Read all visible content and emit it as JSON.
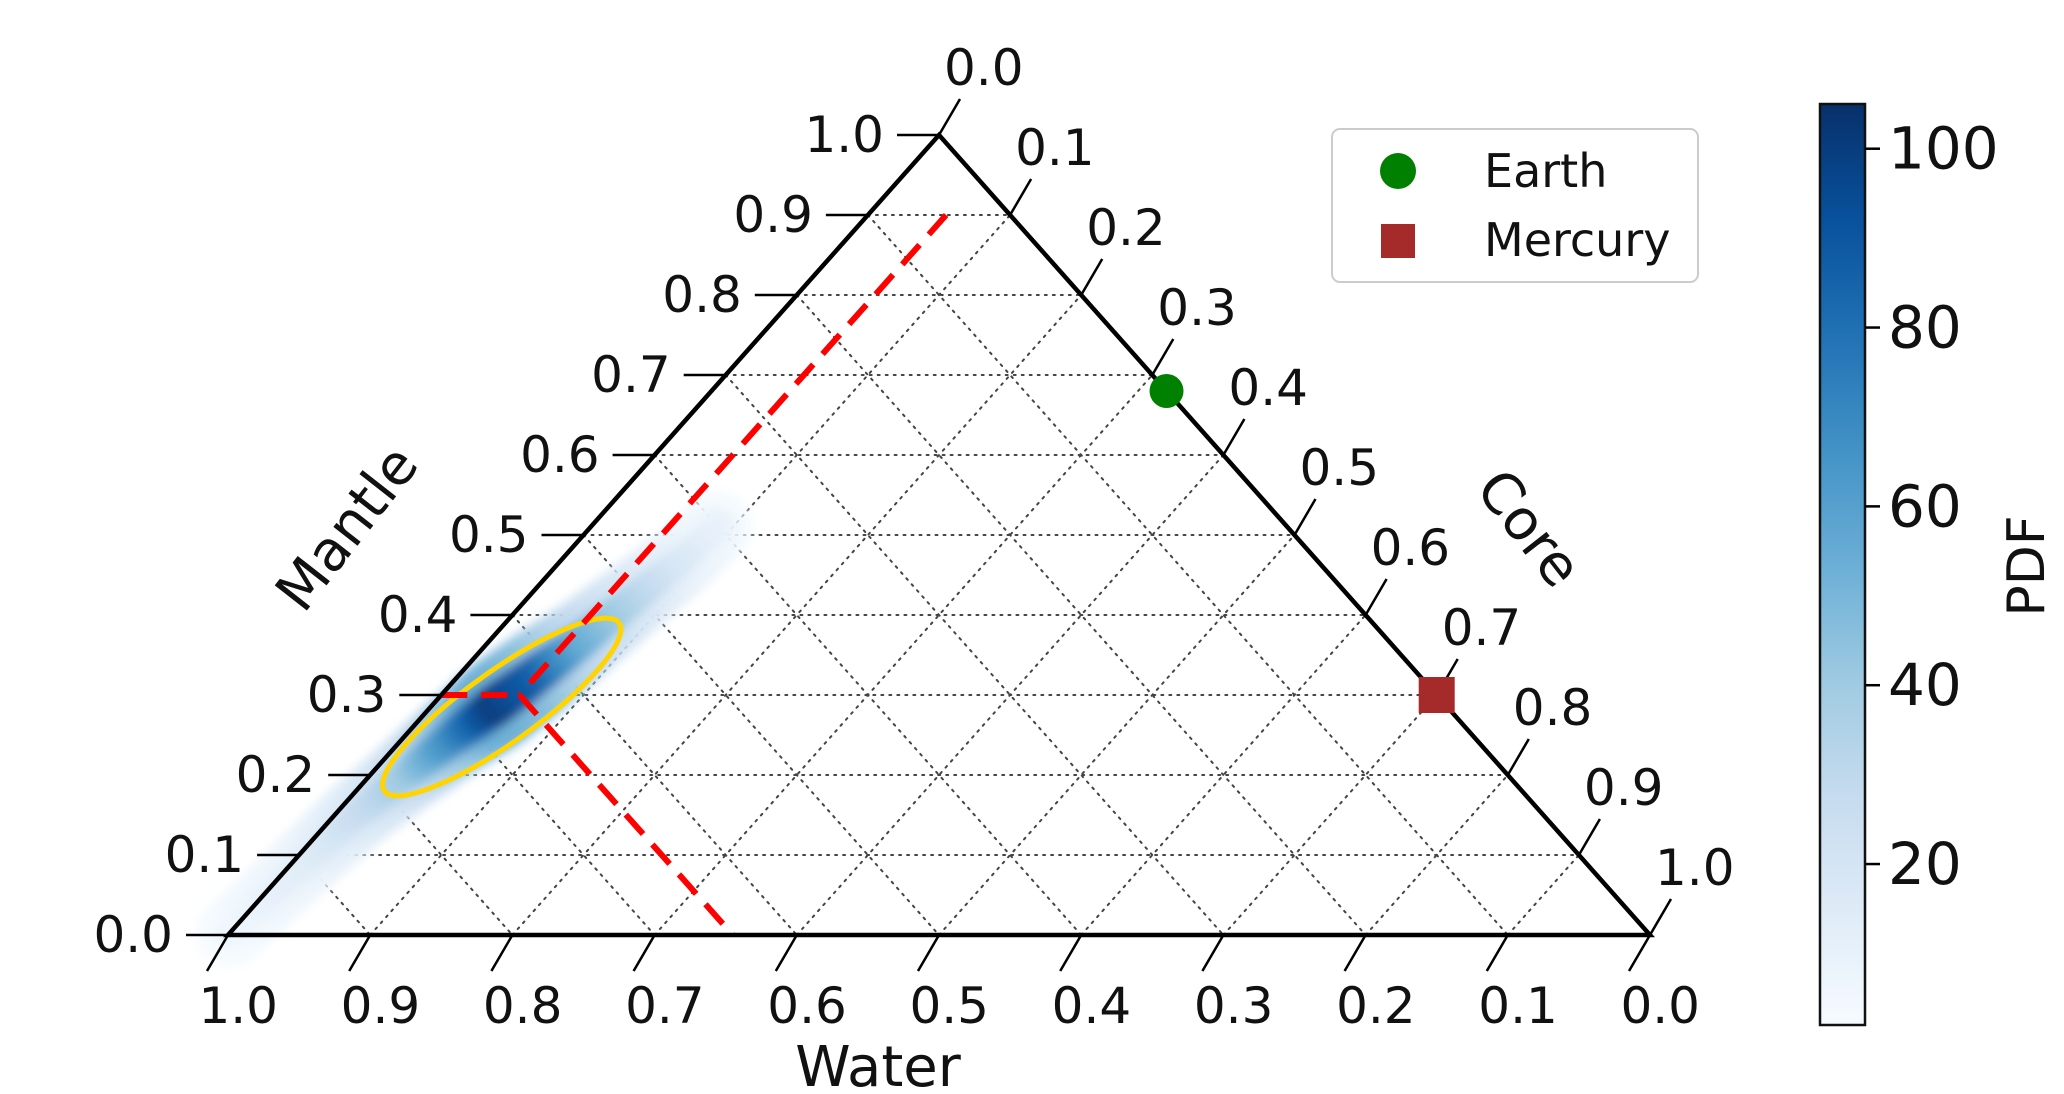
{
  "chart_data": {
    "type": "scatter",
    "subtype": "ternary-density",
    "axes": {
      "left": {
        "label": "Mantle",
        "ticks": [
          "0.0",
          "0.1",
          "0.2",
          "0.3",
          "0.4",
          "0.5",
          "0.6",
          "0.7",
          "0.8",
          "0.9",
          "1.0"
        ]
      },
      "right": {
        "label": "Core",
        "ticks": [
          "0.0",
          "0.1",
          "0.2",
          "0.3",
          "0.4",
          "0.5",
          "0.6",
          "0.7",
          "0.8",
          "0.9",
          "1.0"
        ]
      },
      "bottom": {
        "label": "Water",
        "ticks": [
          "1.0",
          "0.9",
          "0.8",
          "0.7",
          "0.6",
          "0.5",
          "0.4",
          "0.3",
          "0.2",
          "0.1",
          "0.0"
        ]
      }
    },
    "grid": true,
    "legend": {
      "placement": "top-right",
      "entries": [
        {
          "label": "Earth",
          "marker": "circle",
          "color": "#008000"
        },
        {
          "label": "Mercury",
          "marker": "square",
          "color": "#a52a2a"
        }
      ]
    },
    "markers": [
      {
        "name": "Earth",
        "mantle": 0.68,
        "core": 0.32,
        "water": 0.0
      },
      {
        "name": "Mercury",
        "mantle": 0.3,
        "core": 0.7,
        "water": 0.0
      }
    ],
    "density": {
      "colormap": "Blues",
      "colorbar_label": "PDF",
      "colorbar_ticks": [
        "20",
        "40",
        "60",
        "80",
        "100"
      ],
      "colorbar_range": [
        2,
        105
      ],
      "ridge": [
        {
          "mantle": 0.0,
          "core": 0.0,
          "pdf": 6
        },
        {
          "mantle": 0.05,
          "core": 0.005,
          "pdf": 10
        },
        {
          "mantle": 0.1,
          "core": 0.01,
          "pdf": 15
        },
        {
          "mantle": 0.15,
          "core": 0.015,
          "pdf": 25
        },
        {
          "mantle": 0.2,
          "core": 0.025,
          "pdf": 40
        },
        {
          "mantle": 0.25,
          "core": 0.035,
          "pdf": 70
        },
        {
          "mantle": 0.29,
          "core": 0.045,
          "pdf": 100
        },
        {
          "mantle": 0.33,
          "core": 0.055,
          "pdf": 85
        },
        {
          "mantle": 0.37,
          "core": 0.065,
          "pdf": 55
        },
        {
          "mantle": 0.42,
          "core": 0.075,
          "pdf": 35
        },
        {
          "mantle": 0.47,
          "core": 0.085,
          "pdf": 18
        },
        {
          "mantle": 0.52,
          "core": 0.09,
          "pdf": 8
        }
      ],
      "credible_region": {
        "color": "#ffd400",
        "major_end_1": {
          "mantle": 0.18,
          "core": 0.02
        },
        "major_end_2": {
          "mantle": 0.39,
          "core": 0.08
        },
        "minor_half_width": 0.025
      }
    },
    "reference_lines": {
      "color": "#ff0000",
      "style": "dashed",
      "lines": [
        {
          "from": {
            "mantle": 0.3,
            "core": 0.0
          },
          "to": {
            "mantle": 0.3,
            "core": 0.055
          }
        },
        {
          "from": {
            "mantle": 0.3,
            "core": 0.055
          },
          "to": {
            "mantle": 0.0,
            "core": 0.355
          }
        },
        {
          "from": {
            "mantle": 0.9,
            "core": 0.055
          },
          "to": {
            "mantle": 0.3,
            "core": 0.055
          }
        }
      ]
    }
  }
}
